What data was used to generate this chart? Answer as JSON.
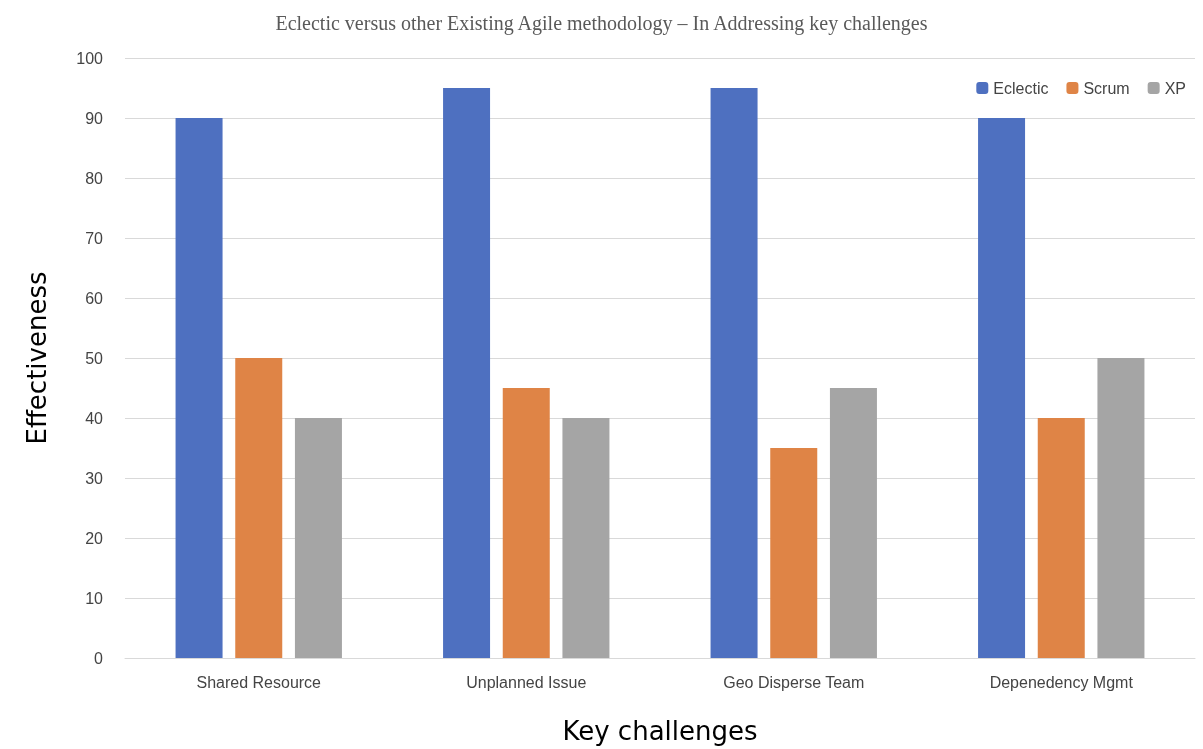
{
  "chart_data": {
    "type": "bar",
    "title": "Eclectic versus other Existing Agile methodology – In Addressing key challenges",
    "xlabel": "Key challenges",
    "ylabel": "Effectiveness",
    "categories": [
      "Shared Resource",
      "Unplanned Issue",
      "Geo Disperse Team",
      "Depenedency Mgmt"
    ],
    "series": [
      {
        "name": "Eclectic",
        "color": "#4e70c0",
        "values": [
          90,
          95,
          95,
          90
        ]
      },
      {
        "name": "Scrum",
        "color": "#df8446",
        "values": [
          50,
          45,
          35,
          40
        ]
      },
      {
        "name": "XP",
        "color": "#a5a5a5",
        "values": [
          40,
          40,
          45,
          50
        ]
      }
    ],
    "ylim": [
      0,
      100
    ],
    "yticks": [
      0,
      10,
      20,
      30,
      40,
      50,
      60,
      70,
      80,
      90,
      100
    ],
    "grid": "y",
    "legend": "top right"
  }
}
